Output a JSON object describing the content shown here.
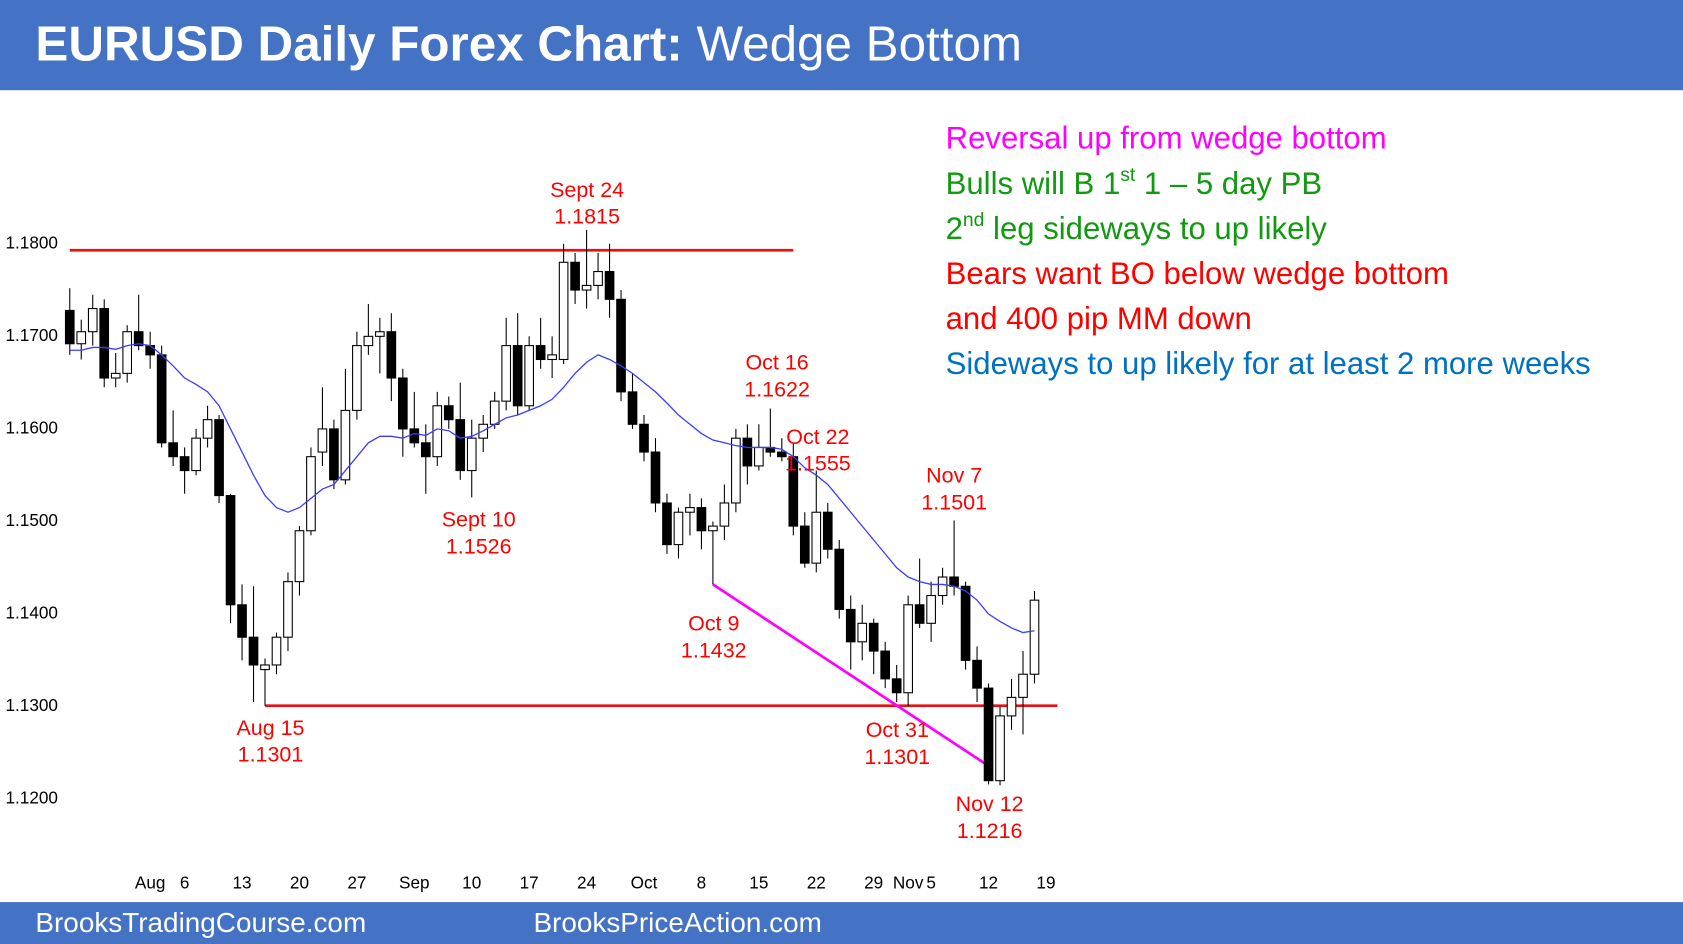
{
  "header": {
    "title_bold": "EURUSD Daily Forex Chart:",
    "title_rest": " Wedge Bottom"
  },
  "footer": {
    "left": "BrooksTradingCourse.com",
    "right": "BrooksPriceAction.com"
  },
  "chart_data": {
    "type": "candlestick",
    "categories": [
      null,
      null,
      null,
      null,
      null,
      null,
      null,
      "Aug",
      null,
      null,
      "6",
      null,
      null,
      null,
      null,
      "13",
      null,
      null,
      null,
      null,
      "20",
      null,
      null,
      null,
      null,
      "27",
      null,
      null,
      null,
      null,
      "Sep",
      null,
      null,
      null,
      null,
      "10",
      null,
      null,
      null,
      null,
      "17",
      null,
      null,
      null,
      null,
      "24",
      null,
      null,
      null,
      null,
      "Oct",
      null,
      null,
      null,
      null,
      "8",
      null,
      null,
      null,
      null,
      "15",
      null,
      null,
      null,
      null,
      "22",
      null,
      null,
      null,
      null,
      "29",
      null,
      null,
      "Nov",
      null,
      "5",
      null,
      null,
      null,
      null,
      "12",
      null,
      null,
      null,
      null,
      "19"
    ],
    "open": [
      1.1728,
      1.1692,
      1.1705,
      1.173,
      1.1655,
      1.166,
      1.1705,
      1.169,
      1.168,
      1.1585,
      1.157,
      1.1555,
      1.159,
      1.161,
      1.1528,
      1.141,
      1.1375,
      1.134,
      1.1345,
      1.1375,
      1.1435,
      1.149,
      1.1575,
      1.16,
      1.1545,
      1.162,
      1.169,
      1.17,
      1.1705,
      1.1655,
      1.16,
      1.1585,
      1.157,
      1.1625,
      1.161,
      1.1555,
      1.159,
      1.1605,
      1.163,
      1.169,
      1.1625,
      1.169,
      1.1675,
      1.1675,
      1.178,
      1.175,
      1.1755,
      1.177,
      1.174,
      1.164,
      1.1605,
      1.1575,
      1.152,
      1.1475,
      1.151,
      1.1515,
      1.149,
      1.1495,
      1.152,
      1.159,
      1.156,
      1.158,
      1.1575,
      1.157,
      1.1495,
      1.1455,
      1.151,
      1.147,
      1.1405,
      1.137,
      1.139,
      1.136,
      1.133,
      1.1315,
      1.141,
      1.139,
      1.142,
      1.144,
      1.143,
      1.135,
      1.132,
      1.122,
      1.129,
      1.131,
      1.1335,
      null
    ],
    "high": [
      1.1752,
      1.1718,
      1.1745,
      1.174,
      1.1682,
      1.1712,
      1.1745,
      1.1705,
      1.169,
      1.162,
      1.158,
      1.16,
      1.1625,
      1.1615,
      1.153,
      1.1432,
      1.143,
      1.1352,
      1.138,
      1.1445,
      1.1495,
      1.158,
      1.1645,
      1.161,
      1.1665,
      1.1705,
      1.1735,
      1.172,
      1.1725,
      1.1665,
      1.164,
      1.1605,
      1.164,
      1.1635,
      1.165,
      1.161,
      1.1615,
      1.164,
      1.172,
      1.1725,
      1.17,
      1.172,
      1.17,
      1.18,
      1.179,
      1.1815,
      1.179,
      1.18,
      1.175,
      1.166,
      1.1615,
      1.159,
      1.153,
      1.1515,
      1.153,
      1.1525,
      1.15,
      1.154,
      1.16,
      1.1605,
      1.1605,
      1.1622,
      1.159,
      1.1585,
      1.151,
      1.1555,
      1.152,
      1.148,
      1.142,
      1.141,
      1.1395,
      1.137,
      1.1345,
      1.142,
      1.146,
      1.1435,
      1.145,
      1.1501,
      1.1435,
      1.1365,
      1.1325,
      1.13,
      1.133,
      1.136,
      1.1425,
      null
    ],
    "low": [
      1.168,
      1.1675,
      1.169,
      1.1645,
      1.1645,
      1.165,
      1.1685,
      1.1665,
      1.158,
      1.156,
      1.153,
      1.155,
      1.158,
      1.152,
      1.139,
      1.135,
      1.1305,
      1.1301,
      1.1335,
      1.136,
      1.142,
      1.1485,
      1.156,
      1.1535,
      1.154,
      1.161,
      1.168,
      1.166,
      1.163,
      1.157,
      1.158,
      1.153,
      1.156,
      1.16,
      1.1545,
      1.1526,
      1.1575,
      1.16,
      1.162,
      1.1615,
      1.162,
      1.1665,
      1.1655,
      1.167,
      1.1735,
      1.173,
      1.174,
      1.172,
      1.163,
      1.16,
      1.1565,
      1.151,
      1.1465,
      1.146,
      1.1485,
      1.147,
      1.1432,
      1.148,
      1.151,
      1.154,
      1.1555,
      1.157,
      1.1565,
      1.1485,
      1.145,
      1.1445,
      1.146,
      1.1395,
      1.134,
      1.135,
      1.1335,
      1.132,
      1.1305,
      1.1301,
      1.1385,
      1.137,
      1.141,
      1.142,
      1.134,
      1.1305,
      1.1216,
      1.1215,
      1.1275,
      1.127,
      1.1325,
      null
    ],
    "close": [
      1.1692,
      1.1705,
      1.173,
      1.1655,
      1.166,
      1.1705,
      1.169,
      1.168,
      1.1585,
      1.157,
      1.1555,
      1.159,
      1.161,
      1.1528,
      1.141,
      1.1375,
      1.1345,
      1.1345,
      1.1375,
      1.1435,
      1.149,
      1.157,
      1.16,
      1.1545,
      1.162,
      1.169,
      1.17,
      1.1705,
      1.1655,
      1.16,
      1.1585,
      1.157,
      1.1625,
      1.161,
      1.1555,
      1.159,
      1.1605,
      1.163,
      1.169,
      1.1625,
      1.169,
      1.1675,
      1.168,
      1.178,
      1.175,
      1.1755,
      1.177,
      1.174,
      1.164,
      1.1605,
      1.1575,
      1.152,
      1.1475,
      1.151,
      1.1515,
      1.149,
      1.1495,
      1.152,
      1.159,
      1.156,
      1.158,
      1.1575,
      1.157,
      1.1495,
      1.1455,
      1.151,
      1.147,
      1.1405,
      1.137,
      1.139,
      1.136,
      1.133,
      1.1315,
      1.141,
      1.139,
      1.142,
      1.144,
      1.143,
      1.135,
      1.132,
      1.122,
      1.129,
      1.131,
      1.1335,
      1.1415,
      null
    ],
    "ma": {
      "color": "#3c3cff",
      "values": [
        1.1685,
        1.1685,
        1.1688,
        1.1688,
        1.1686,
        1.169,
        1.1692,
        1.169,
        1.168,
        1.1668,
        1.1655,
        1.1648,
        1.164,
        1.1625,
        1.16,
        1.1575,
        1.155,
        1.1528,
        1.1515,
        1.151,
        1.1515,
        1.1525,
        1.1535,
        1.154,
        1.1555,
        1.157,
        1.1585,
        1.1592,
        1.1592,
        1.159,
        1.1595,
        1.1593,
        1.16,
        1.1598,
        1.159,
        1.1592,
        1.1598,
        1.1605,
        1.1612,
        1.1615,
        1.162,
        1.1625,
        1.1632,
        1.1645,
        1.166,
        1.1672,
        1.168,
        1.1675,
        1.1668,
        1.166,
        1.165,
        1.164,
        1.1628,
        1.1615,
        1.1605,
        1.1595,
        1.1588,
        1.1585,
        1.1582,
        1.158,
        1.158,
        1.158,
        1.1578,
        1.157,
        1.1558,
        1.155,
        1.154,
        1.1525,
        1.151,
        1.1495,
        1.148,
        1.1465,
        1.145,
        1.144,
        1.1435,
        1.1432,
        1.1432,
        1.143,
        1.1425,
        1.1415,
        1.14,
        1.1392,
        1.1385,
        1.138,
        1.1382,
        null
      ]
    },
    "ylim": [
      1.113,
      1.195
    ],
    "yticks": [
      {
        "value": 1.12,
        "label": "1.1200"
      },
      {
        "value": 1.13,
        "label": "1.1300"
      },
      {
        "value": 1.14,
        "label": "1.1400"
      },
      {
        "value": 1.15,
        "label": "1.1500"
      },
      {
        "value": 1.16,
        "label": "1.1600"
      },
      {
        "value": 1.17,
        "label": "1.1700"
      },
      {
        "value": 1.18,
        "label": "1.1800"
      }
    ],
    "grid": false,
    "lines": [
      {
        "from": [
          0,
          1.1793
        ],
        "to": [
          63,
          1.1793
        ],
        "color": "#e81010"
      },
      {
        "from": [
          17,
          1.1301
        ],
        "to": [
          86,
          1.1301
        ],
        "color": "#e81010"
      },
      {
        "from": [
          56,
          1.1432
        ],
        "to": [
          80,
          1.1236
        ],
        "color": "#ff00ff"
      }
    ],
    "annotations": [
      [
        "Sept 24",
        "1.1815"
      ],
      [
        "Aug 15",
        "1.1301"
      ],
      [
        "Sept 10",
        "1.1526"
      ],
      [
        "Oct 9",
        "1.1432"
      ],
      [
        "Oct 16",
        "1.1622"
      ],
      [
        "Oct 22",
        "1.1555"
      ],
      [
        "Oct 31",
        "1.1301"
      ],
      [
        "Nov 7",
        "1.1501"
      ],
      [
        "Nov 12",
        "1.1216"
      ]
    ],
    "annotation_color": "#ff0000",
    "notes": [
      {
        "parts": [
          "Reversal up from wedge bottom"
        ],
        "color": "#ff00ff"
      },
      {
        "parts": [
          "Bulls will B 1",
          "st",
          " 1 – 5 day PB"
        ],
        "color": "#119911"
      },
      {
        "parts": [
          "2",
          "nd",
          " leg sideways to up likely"
        ],
        "color": "#119911"
      },
      {
        "parts": [
          "Bears want BO below wedge bottom"
        ],
        "color": "#ff0000"
      },
      {
        "parts": [
          "and 400 pip MM down"
        ],
        "color": "#ff0000"
      },
      {
        "parts": [
          "Sideways to up likely for at least 2 more weeks"
        ],
        "color": "#0070c0"
      }
    ]
  }
}
